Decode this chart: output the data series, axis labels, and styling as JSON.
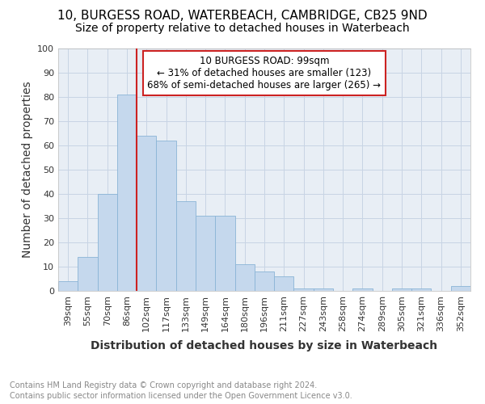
{
  "title_line1": "10, BURGESS ROAD, WATERBEACH, CAMBRIDGE, CB25 9ND",
  "title_line2": "Size of property relative to detached houses in Waterbeach",
  "xlabel": "Distribution of detached houses by size in Waterbeach",
  "ylabel": "Number of detached properties",
  "footer_line1": "Contains HM Land Registry data © Crown copyright and database right 2024.",
  "footer_line2": "Contains public sector information licensed under the Open Government Licence v3.0.",
  "categories": [
    "39sqm",
    "55sqm",
    "70sqm",
    "86sqm",
    "102sqm",
    "117sqm",
    "133sqm",
    "149sqm",
    "164sqm",
    "180sqm",
    "196sqm",
    "211sqm",
    "227sqm",
    "243sqm",
    "258sqm",
    "274sqm",
    "289sqm",
    "305sqm",
    "321sqm",
    "336sqm",
    "352sqm"
  ],
  "values": [
    4,
    14,
    40,
    81,
    64,
    62,
    37,
    31,
    31,
    11,
    8,
    6,
    1,
    1,
    0,
    1,
    0,
    1,
    1,
    0,
    2
  ],
  "bar_color": "#c5d8ed",
  "bar_edge_color": "#8ab4d6",
  "vline_color": "#cc2222",
  "box_edge_color": "#cc2222",
  "marker_label": "10 BURGESS ROAD: 99sqm",
  "annotation_line2": "← 31% of detached houses are smaller (123)",
  "annotation_line3": "68% of semi-detached houses are larger (265) →",
  "vline_index": 3,
  "ylim": [
    0,
    100
  ],
  "yticks": [
    0,
    10,
    20,
    30,
    40,
    50,
    60,
    70,
    80,
    90,
    100
  ],
  "axes_bg": "#e8eef5",
  "grid_color": "#c8d4e4",
  "title_fontsize": 11,
  "subtitle_fontsize": 10,
  "axis_label_fontsize": 10,
  "tick_fontsize": 8,
  "footer_fontsize": 7
}
